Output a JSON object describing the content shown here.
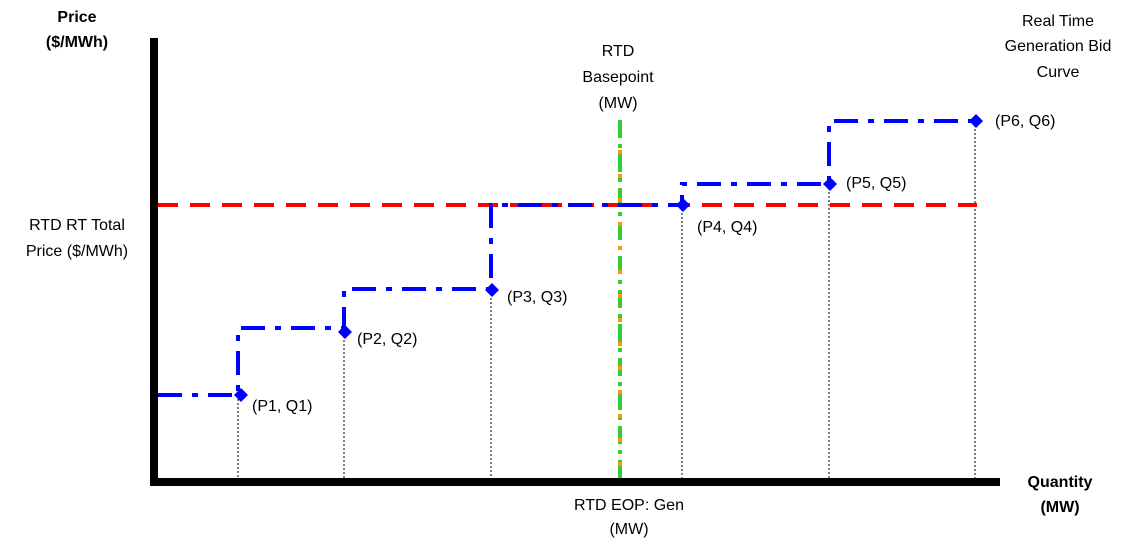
{
  "diagram": {
    "y_axis_label": [
      "Price",
      "($/MWh)"
    ],
    "x_axis_label": [
      "Quantity",
      "(MW)"
    ],
    "curve_label": [
      "Real Time",
      "Generation Bid",
      "Curve"
    ],
    "basepoint_label": [
      "RTD",
      "Basepoint",
      "(MW)"
    ],
    "price_label": [
      "RTD RT Total",
      "Price ($/MWh)"
    ],
    "eop_label": [
      "RTD EOP: Gen",
      "(MW)"
    ],
    "points": [
      {
        "label": "(P1, Q1)"
      },
      {
        "label": "(P2, Q2)"
      },
      {
        "label": "(P3, Q3)"
      },
      {
        "label": "(P4, Q4)"
      },
      {
        "label": "(P5, Q5)"
      },
      {
        "label": "(P6, Q6)"
      }
    ],
    "colors": {
      "axis": "#000000",
      "bid_curve": "#0000ff",
      "price_line": "#ff0000",
      "basepoint_line": "#33cc33",
      "eop_line": "#ff9900"
    }
  }
}
